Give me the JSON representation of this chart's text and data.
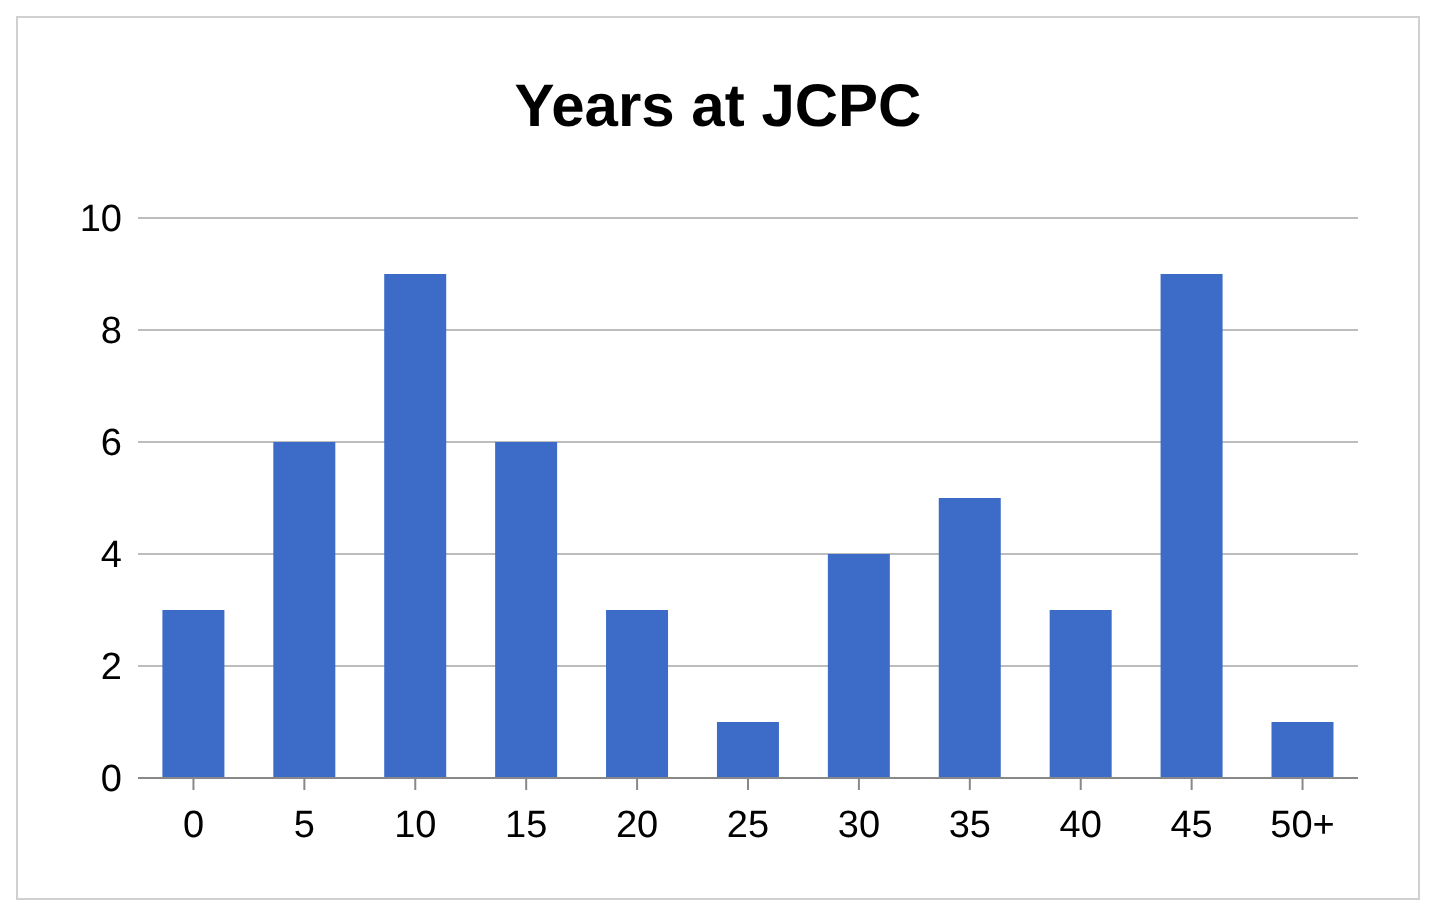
{
  "chart_data": {
    "type": "bar",
    "title": "Years at JCPC",
    "categories": [
      "0",
      "5",
      "10",
      "15",
      "20",
      "25",
      "30",
      "35",
      "40",
      "45",
      "50+"
    ],
    "values": [
      3,
      6,
      9,
      6,
      3,
      1,
      4,
      5,
      3,
      9,
      1
    ],
    "color": "#3c6cc8",
    "ylim": [
      0,
      10
    ],
    "yticks": [
      0,
      2,
      4,
      6,
      8,
      10
    ],
    "grid": "y"
  }
}
